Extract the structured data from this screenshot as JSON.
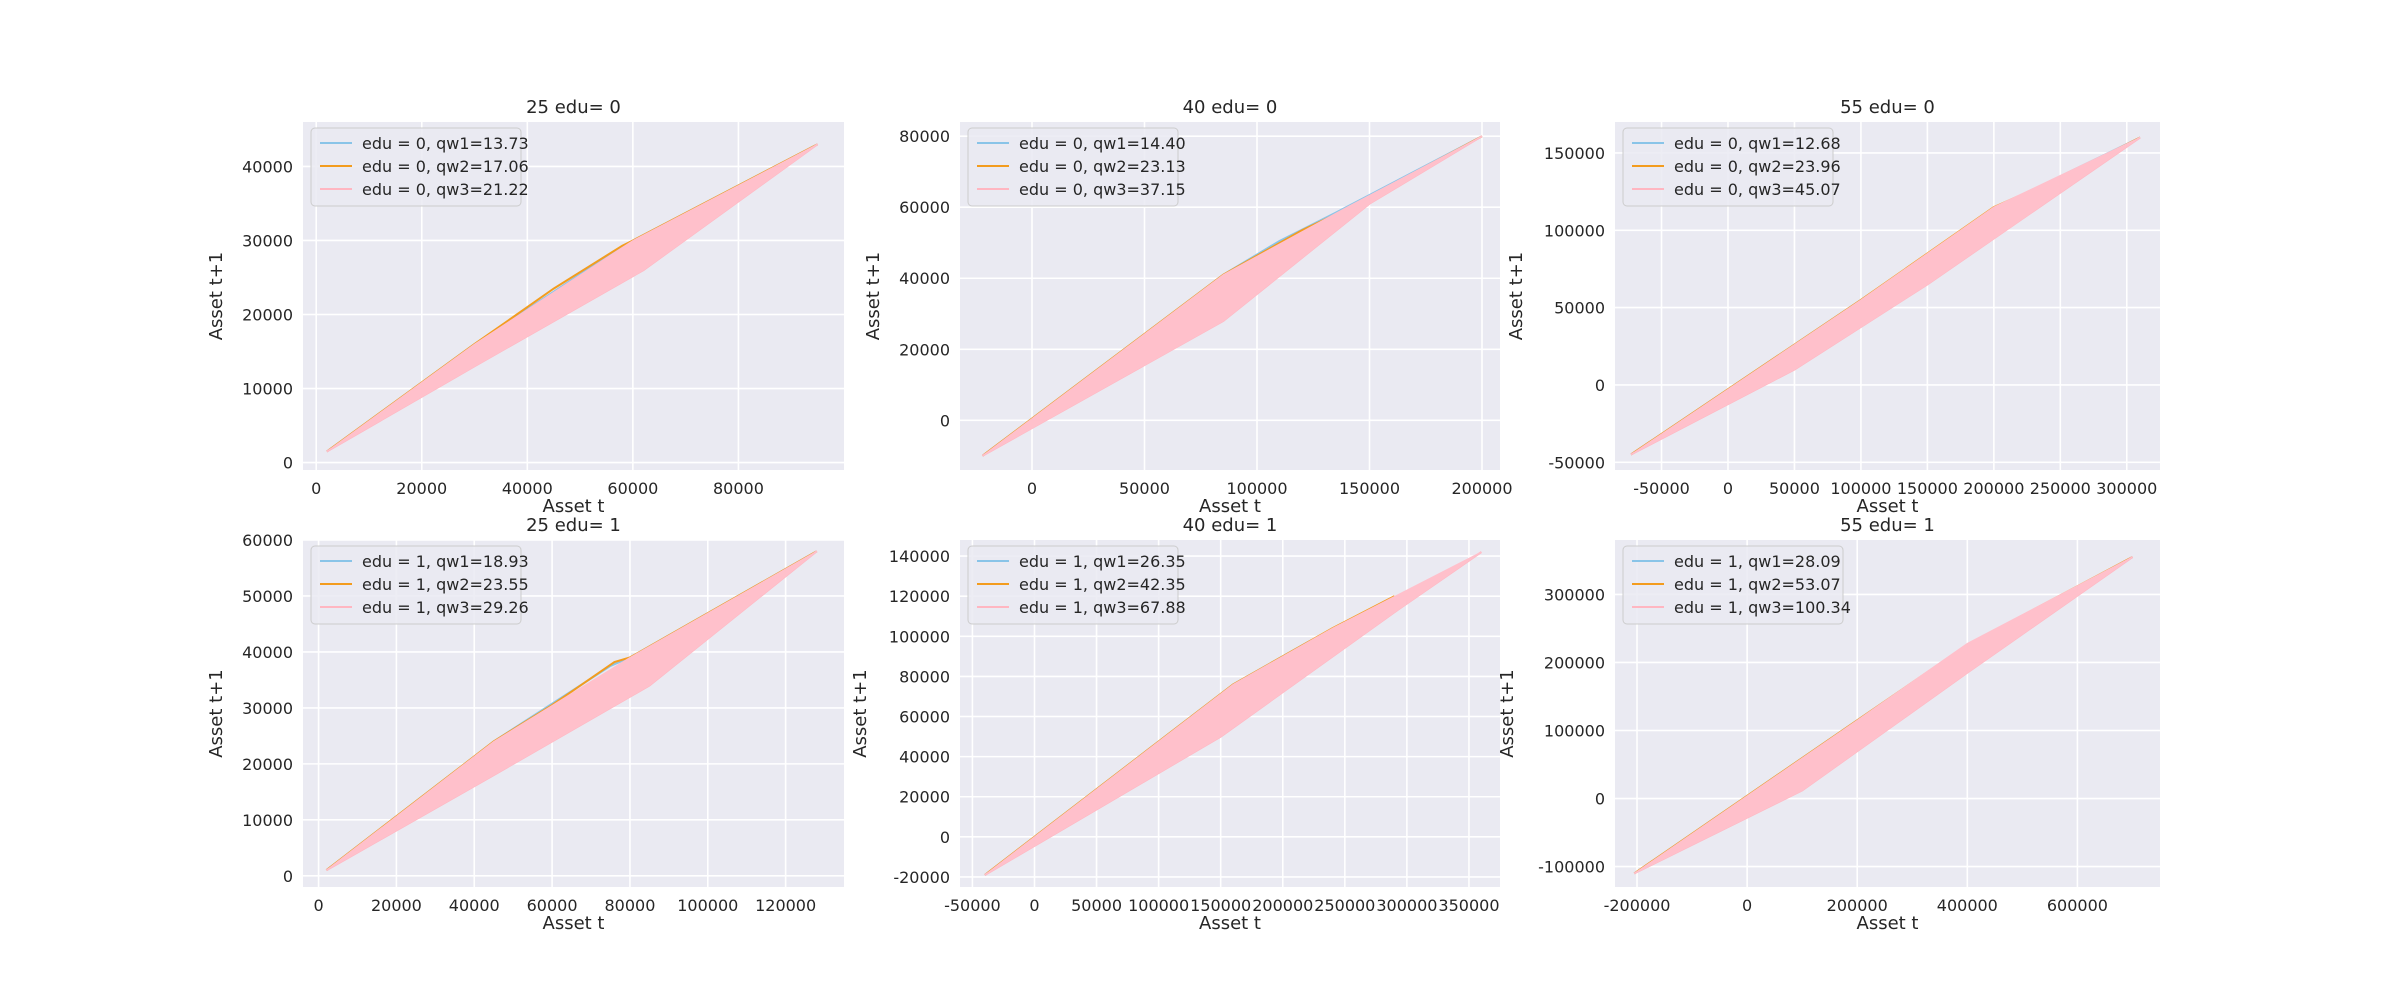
{
  "chart_data": [
    {
      "type": "area",
      "title": "25 edu= 0",
      "xlabel": "Asset t",
      "ylabel": "Asset t+1",
      "xlim": [
        -2500,
        100000
      ],
      "ylim": [
        -1000,
        46000
      ],
      "xticks": [
        0,
        20000,
        40000,
        60000,
        80000
      ],
      "yticks": [
        0,
        10000,
        20000,
        30000,
        40000
      ],
      "grid": true,
      "legend_position": "upper-left",
      "band_upper": [
        [
          2000,
          1500
        ],
        [
          30000,
          16000
        ],
        [
          60000,
          30000
        ],
        [
          95000,
          43000
        ]
      ],
      "band_lower": [
        [
          2000,
          1500
        ],
        [
          30000,
          13000
        ],
        [
          62000,
          26000
        ],
        [
          95000,
          43000
        ]
      ],
      "series": [
        {
          "name": "edu = 0, qw1=13.73",
          "color": "#89C4E8",
          "points": [
            [
              2000,
              1500
            ],
            [
              30000,
              16000
            ],
            [
              58000,
              29200
            ],
            [
              60000,
              30000
            ],
            [
              95000,
              43000
            ]
          ]
        },
        {
          "name": "edu = 0, qw2=17.06",
          "color": "#F39C1E",
          "points": [
            [
              2000,
              1500
            ],
            [
              30000,
              16000
            ],
            [
              45000,
              23500
            ],
            [
              58000,
              29300
            ],
            [
              60000,
              30000
            ],
            [
              95000,
              43000
            ]
          ]
        },
        {
          "name": "edu = 0, qw3=21.22",
          "color": "#FFB6C1",
          "points": [
            [
              2000,
              1500
            ],
            [
              30000,
              13000
            ],
            [
              62000,
              26000
            ],
            [
              95000,
              43000
            ]
          ]
        }
      ]
    },
    {
      "type": "area",
      "title": "40 edu= 0",
      "xlabel": "Asset t",
      "ylabel": "Asset t+1",
      "xlim": [
        -32000,
        208000
      ],
      "ylim": [
        -14000,
        84000
      ],
      "xticks": [
        0,
        50000,
        100000,
        150000,
        200000
      ],
      "yticks": [
        0,
        20000,
        40000,
        60000,
        80000
      ],
      "grid": true,
      "legend_position": "upper-left",
      "band_upper": [
        [
          -22000,
          -10000
        ],
        [
          85000,
          41000
        ],
        [
          140000,
          60000
        ],
        [
          200000,
          80000
        ]
      ],
      "band_lower": [
        [
          -22000,
          -10000
        ],
        [
          85000,
          28000
        ],
        [
          150000,
          61000
        ],
        [
          200000,
          80000
        ]
      ],
      "series": [
        {
          "name": "edu = 0, qw1=14.40",
          "color": "#89C4E8",
          "points": [
            [
              -22000,
              -10000
            ],
            [
              85000,
              41000
            ],
            [
              110000,
              50500
            ],
            [
              135000,
              58500
            ],
            [
              200000,
              80000
            ]
          ]
        },
        {
          "name": "edu = 0, qw2=23.13",
          "color": "#F39C1E",
          "points": [
            [
              -22000,
              -10000
            ],
            [
              85000,
              41000
            ],
            [
              120000,
              53500
            ],
            [
              140000,
              59500
            ],
            [
              200000,
              80000
            ]
          ]
        },
        {
          "name": "edu = 0, qw3=37.15",
          "color": "#FFB6C1",
          "points": [
            [
              -22000,
              -10000
            ],
            [
              85000,
              28000
            ],
            [
              150000,
              61000
            ],
            [
              200000,
              80000
            ]
          ]
        }
      ]
    },
    {
      "type": "area",
      "title": "55 edu= 0",
      "xlabel": "Asset t",
      "ylabel": "Asset t+1",
      "xlim": [
        -85000,
        325000
      ],
      "ylim": [
        -55000,
        170000
      ],
      "xticks": [
        -50000,
        0,
        50000,
        100000,
        150000,
        200000,
        250000,
        300000
      ],
      "yticks": [
        -50000,
        0,
        50000,
        100000,
        150000
      ],
      "grid": true,
      "legend_position": "upper-left",
      "band_upper": [
        [
          -73000,
          -45000
        ],
        [
          100000,
          55000
        ],
        [
          200000,
          115000
        ],
        [
          310000,
          160000
        ]
      ],
      "band_lower": [
        [
          -73000,
          -45000
        ],
        [
          50000,
          10000
        ],
        [
          150000,
          65000
        ],
        [
          310000,
          160000
        ]
      ],
      "series": [
        {
          "name": "edu = 0, qw1=12.68",
          "color": "#89C4E8",
          "points": [
            [
              -73000,
              -45000
            ],
            [
              100000,
              55000
            ],
            [
              200000,
              114000
            ],
            [
              310000,
              160000
            ]
          ]
        },
        {
          "name": "edu = 0, qw2=23.96",
          "color": "#F39C1E",
          "points": [
            [
              -73000,
              -45000
            ],
            [
              100000,
              55000
            ],
            [
              200000,
              115000
            ],
            [
              250000,
              134000
            ],
            [
              310000,
              160000
            ]
          ]
        },
        {
          "name": "edu = 0, qw3=45.07",
          "color": "#FFB6C1",
          "points": [
            [
              -73000,
              -45000
            ],
            [
              50000,
              10000
            ],
            [
              150000,
              65000
            ],
            [
              310000,
              160000
            ]
          ]
        }
      ]
    },
    {
      "type": "area",
      "title": "25 edu= 1",
      "xlabel": "Asset t",
      "ylabel": "Asset t+1",
      "xlim": [
        -4000,
        135000
      ],
      "ylim": [
        -2000,
        60000
      ],
      "xticks": [
        0,
        20000,
        40000,
        60000,
        80000,
        100000,
        120000
      ],
      "yticks": [
        0,
        10000,
        20000,
        30000,
        40000,
        50000,
        60000
      ],
      "grid": true,
      "legend_position": "upper-left",
      "band_upper": [
        [
          2000,
          1000
        ],
        [
          45000,
          24000
        ],
        [
          80000,
          39000
        ],
        [
          128000,
          58000
        ]
      ],
      "band_lower": [
        [
          2000,
          1000
        ],
        [
          45000,
          18000
        ],
        [
          85000,
          34000
        ],
        [
          128000,
          58000
        ]
      ],
      "series": [
        {
          "name": "edu = 1, qw1=18.93",
          "color": "#89C4E8",
          "points": [
            [
              2000,
              1000
            ],
            [
              45000,
              24000
            ],
            [
              75000,
              37500
            ],
            [
              80000,
              39000
            ],
            [
              128000,
              58000
            ]
          ]
        },
        {
          "name": "edu = 1, qw2=23.55",
          "color": "#F39C1E",
          "points": [
            [
              2000,
              1000
            ],
            [
              45000,
              24000
            ],
            [
              60000,
              30500
            ],
            [
              76000,
              38200
            ],
            [
              80000,
              39000
            ],
            [
              128000,
              58000
            ]
          ]
        },
        {
          "name": "edu = 1, qw3=29.26",
          "color": "#FFB6C1",
          "points": [
            [
              2000,
              1000
            ],
            [
              45000,
              18000
            ],
            [
              85000,
              34000
            ],
            [
              128000,
              58000
            ]
          ]
        }
      ]
    },
    {
      "type": "area",
      "title": "40 edu= 1",
      "xlabel": "Asset t",
      "ylabel": "Asset t+1",
      "xlim": [
        -60000,
        375000
      ],
      "ylim": [
        -25000,
        148000
      ],
      "xticks": [
        -50000,
        0,
        50000,
        100000,
        150000,
        200000,
        250000,
        300000,
        350000
      ],
      "yticks": [
        -20000,
        0,
        20000,
        40000,
        60000,
        80000,
        100000,
        120000,
        140000
      ],
      "grid": true,
      "legend_position": "upper-left",
      "band_upper": [
        [
          -40000,
          -19000
        ],
        [
          160000,
          76000
        ],
        [
          240000,
          104000
        ],
        [
          360000,
          142000
        ]
      ],
      "band_lower": [
        [
          -40000,
          -19000
        ],
        [
          150000,
          50000
        ],
        [
          290000,
          112000
        ],
        [
          360000,
          142000
        ]
      ],
      "series": [
        {
          "name": "edu = 1, qw1=26.35",
          "color": "#89C4E8",
          "points": [
            [
              -40000,
              -19000
            ],
            [
              160000,
              76000
            ],
            [
              220000,
              97000
            ],
            [
              290000,
              118500
            ]
          ]
        },
        {
          "name": "edu = 1, qw2=42.35",
          "color": "#F39C1E",
          "points": [
            [
              -40000,
              -19000
            ],
            [
              160000,
              76000
            ],
            [
              240000,
              104000
            ],
            [
              290000,
              120000
            ]
          ]
        },
        {
          "name": "edu = 1, qw3=67.88",
          "color": "#FFB6C1",
          "points": [
            [
              -40000,
              -19000
            ],
            [
              150000,
              50000
            ],
            [
              290000,
              112000
            ],
            [
              360000,
              142000
            ]
          ]
        }
      ]
    },
    {
      "type": "area",
      "title": "55 edu= 1",
      "xlabel": "Asset t",
      "ylabel": "Asset t+1",
      "xlim": [
        -240000,
        750000
      ],
      "ylim": [
        -130000,
        380000
      ],
      "xticks": [
        -200000,
        0,
        200000,
        400000,
        600000
      ],
      "yticks": [
        -100000,
        0,
        100000,
        200000,
        300000
      ],
      "grid": true,
      "legend_position": "upper-left",
      "band_upper": [
        [
          -205000,
          -110000
        ],
        [
          200000,
          115000
        ],
        [
          400000,
          228000
        ],
        [
          700000,
          355000
        ]
      ],
      "band_lower": [
        [
          -205000,
          -110000
        ],
        [
          100000,
          12000
        ],
        [
          400000,
          185000
        ],
        [
          700000,
          355000
        ]
      ],
      "series": [
        {
          "name": "edu = 1, qw1=28.09",
          "color": "#89C4E8",
          "points": [
            [
              -205000,
              -110000
            ],
            [
              200000,
              115000
            ],
            [
              400000,
              225000
            ],
            [
              700000,
              355000
            ]
          ]
        },
        {
          "name": "edu = 1, qw2=53.07",
          "color": "#F39C1E",
          "points": [
            [
              -205000,
              -110000
            ],
            [
              200000,
              115000
            ],
            [
              400000,
              226000
            ],
            [
              700000,
              355000
            ]
          ]
        },
        {
          "name": "edu = 1, qw3=100.34",
          "color": "#FFB6C1",
          "points": [
            [
              -205000,
              -110000
            ],
            [
              100000,
              12000
            ],
            [
              400000,
              185000
            ],
            [
              700000,
              355000
            ]
          ]
        }
      ]
    }
  ]
}
